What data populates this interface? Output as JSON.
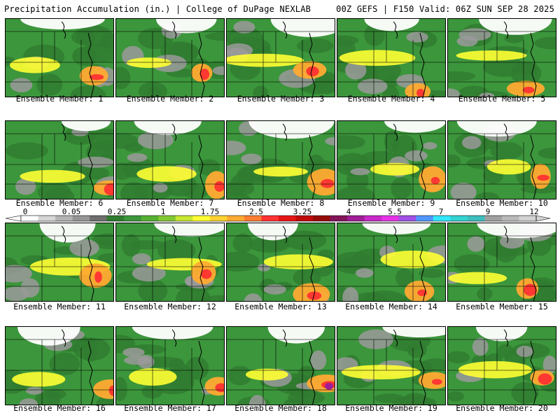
{
  "header": {
    "title_left": "Precipitation Accumulation (in.) | College of DuPage NEXLAB",
    "title_right": "00Z GEFS | F150 Valid: 06Z SUN SEP 28 2025"
  },
  "member_label_prefix": "Ensemble Member: ",
  "members": [
    1,
    2,
    3,
    4,
    5,
    6,
    7,
    8,
    9,
    10,
    11,
    12,
    13,
    14,
    15,
    16,
    17,
    18,
    19,
    20
  ],
  "colorbar": {
    "labels": [
      "0",
      "0.05",
      "0.25",
      "1",
      "1.75",
      "2.5",
      "3.25",
      "4",
      "5.5",
      "7",
      "9",
      "12"
    ],
    "colors": [
      "#ffffff",
      "#d6d6d6",
      "#b4b4b4",
      "#969696",
      "#6e6e6e",
      "#2f7b2f",
      "#3c963c",
      "#55b032",
      "#82c832",
      "#c8e632",
      "#ffff32",
      "#ffd232",
      "#ffaa32",
      "#ff7d32",
      "#ff3232",
      "#e61414",
      "#be0a0a",
      "#960a0a",
      "#82145a",
      "#a01e96",
      "#c828c8",
      "#e632e6",
      "#a050e6",
      "#5096ff",
      "#32e6ff",
      "#32d2d2",
      "#3cbebe",
      "#a0a0a0",
      "#b9b9b9",
      "#d2d2d2"
    ]
  },
  "colors": {
    "ocean_white": "#ffffff",
    "low_gray": "#9a9a9a",
    "green_dark": "#2f7b2f",
    "green": "#3c963c",
    "yellow": "#ffff32",
    "orange": "#ffaa32",
    "red": "#ff3232",
    "magenta": "#a01e96"
  }
}
